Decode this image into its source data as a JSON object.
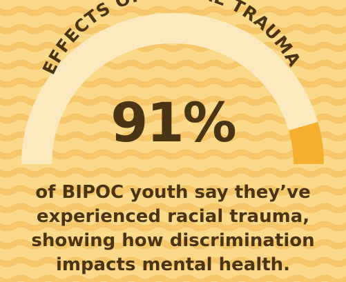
{
  "infographic": {
    "heading": "EFFECTS OF RACIAL TRAUMA",
    "statistic": "91%",
    "statistic_fraction": 0.91,
    "caption_lines": [
      "of BIPOC youth say they’ve",
      "experienced racial trauma,",
      "showing how discrimination",
      "impacts mental health."
    ]
  },
  "colors": {
    "background": "#fbd98a",
    "wave": "#f6c76a",
    "gauge_track": "#fde9c0",
    "gauge_fill": "#f4b02e",
    "text": "#4a3415"
  }
}
